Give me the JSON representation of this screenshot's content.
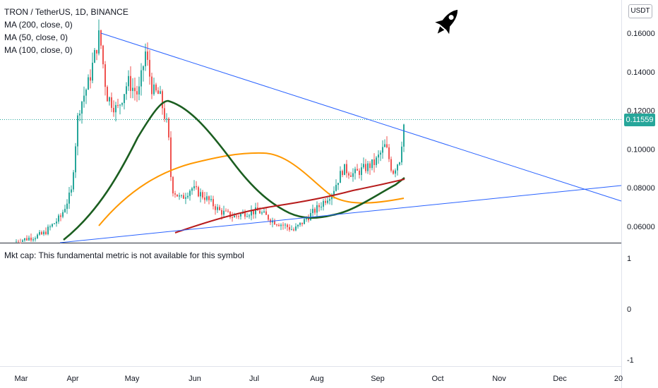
{
  "legend": {
    "title": "TRON / TetherUS, 1D, BINANCE",
    "ma1": "MA (200, close, 0)",
    "ma2": "MA (50, close, 0)",
    "ma3": "MA (100, close, 0)"
  },
  "unit_button": "USDT",
  "current_price": "0.11559",
  "market_cap_text": "Mkt cap: This fundamental metric is not available for this symbol",
  "icons": {
    "rocket": "rocket-icon"
  },
  "colors": {
    "up": "#26a69a",
    "down": "#ef5350",
    "ma200": "#b71c1c",
    "ma50": "#1b5e20",
    "ma100": "#ff9800",
    "trendline": "#2962ff"
  },
  "chart_data": [
    {
      "type": "candlestick",
      "title": "TRON / TetherUS, 1D, BINANCE",
      "x_ticks": [
        "Mar",
        "Apr",
        "May",
        "Jun",
        "Jul",
        "Aug",
        "Sep",
        "Oct",
        "Nov",
        "Dec",
        "20"
      ],
      "y_ticks": [
        "0.06000",
        "0.08000",
        "0.10000",
        "0.12000",
        "0.14000",
        "0.16000"
      ],
      "ylim": [
        0.0545,
        0.1845
      ],
      "last_price": 0.11559,
      "candles": [
        {
          "month": "Mar",
          "close": 0.052
        },
        {
          "month": "Apr",
          "close": 0.081
        },
        {
          "month": "Apr",
          "close": 0.135
        },
        {
          "month": "Apr",
          "close": 0.159
        },
        {
          "month": "Apr",
          "close": 0.125
        },
        {
          "month": "May",
          "close": 0.139
        },
        {
          "month": "May",
          "close": 0.151
        },
        {
          "month": "May",
          "close": 0.121
        },
        {
          "month": "Jun",
          "close": 0.072
        },
        {
          "month": "Jun",
          "close": 0.081
        },
        {
          "month": "Jun",
          "close": 0.074
        },
        {
          "month": "Jul",
          "close": 0.063
        },
        {
          "month": "Jul",
          "close": 0.069
        },
        {
          "month": "Jul",
          "close": 0.059
        },
        {
          "month": "Aug",
          "close": 0.063
        },
        {
          "month": "Aug",
          "close": 0.077
        },
        {
          "month": "Aug",
          "close": 0.089
        },
        {
          "month": "Sep",
          "close": 0.101
        },
        {
          "month": "Sep",
          "close": 0.087
        },
        {
          "month": "Sep",
          "close": 0.11559
        }
      ],
      "series": [
        {
          "name": "MA (200, close, 0)",
          "color": "#b71c1c"
        },
        {
          "name": "MA (50, close, 0)",
          "color": "#1b5e20"
        },
        {
          "name": "MA (100, close, 0)",
          "color": "#ff9800"
        }
      ],
      "grid": false,
      "legend_position": "top-left"
    },
    {
      "type": "line",
      "title": "Mkt cap: This fundamental metric is not available for this symbol",
      "y_ticks": [
        "1",
        "0",
        "-1"
      ],
      "ylim": [
        -1.15,
        1.15
      ]
    }
  ]
}
